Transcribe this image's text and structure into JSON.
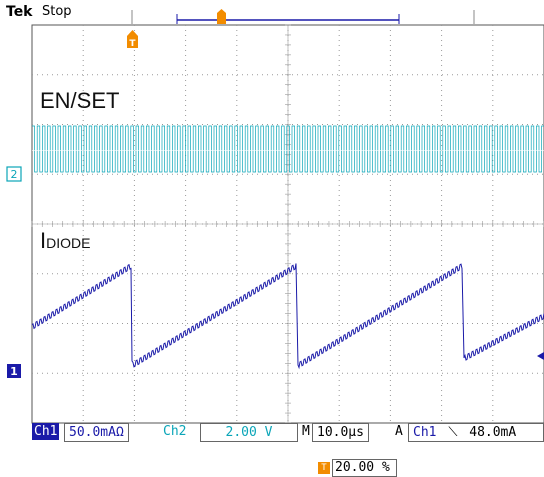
{
  "header": {
    "brand": "Tek",
    "state": "Stop"
  },
  "traces": {
    "ch2_label": "EN/SET",
    "ch1_label_main": "I",
    "ch1_label_sub": "DIODE",
    "ch2_marker": "2",
    "ch1_marker": "1",
    "trigger_marker": "T"
  },
  "status": {
    "ch1_tag": "Ch1",
    "ch1_scale": "50.0mAΩ",
    "ch2_tag": "Ch2",
    "ch2_scale": "2.00 V",
    "timebase_tag": "M",
    "timebase": "10.0µs",
    "trigger_tag": "A",
    "trigger_source": "Ch1",
    "trigger_slope_icon": "falling-edge-icon",
    "trigger_slope_glyph": "⟍",
    "trigger_level": "48.0mA"
  },
  "trigger_position": {
    "value": "20.00 %"
  },
  "colors": {
    "ch1": "#1a1aa8",
    "ch2": "#0aa5b8",
    "trigger": "#f28c00",
    "grid": "#9a9a9a"
  }
}
